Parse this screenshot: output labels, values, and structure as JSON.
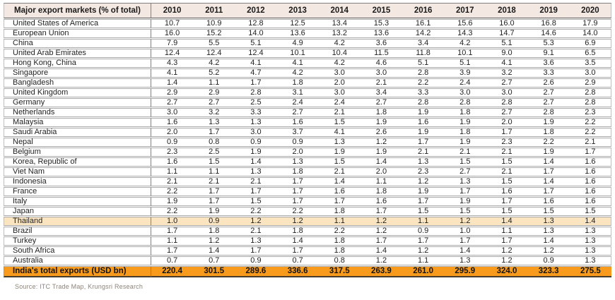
{
  "colors": {
    "header_bg": "#F4E8E3",
    "highlight_bg": "#FBE5C0",
    "total_bg": "#F89B1C",
    "row_border": "#ABABAB",
    "divider": "#808080",
    "header_border_top": "#808080",
    "header_border_bottom": "#595959",
    "table_bottom_border": "#4A3C2B",
    "source_color": "#8C8477"
  },
  "chart_data": {
    "type": "table",
    "title": "Major export markets (% of total)",
    "columns": [
      "2010",
      "2011",
      "2012",
      "2013",
      "2014",
      "2015",
      "2016",
      "2017",
      "2018",
      "2019",
      "2020"
    ],
    "rows": [
      {
        "label": "United States of America",
        "values": [
          10.7,
          10.9,
          12.8,
          12.5,
          13.4,
          15.3,
          16.1,
          15.6,
          16.0,
          16.8,
          17.9
        ],
        "highlight": false
      },
      {
        "label": "European Union",
        "values": [
          16.0,
          15.2,
          14.0,
          13.6,
          13.2,
          13.6,
          14.2,
          14.3,
          14.7,
          14.6,
          14.0
        ],
        "highlight": false
      },
      {
        "label": "China",
        "values": [
          7.9,
          5.5,
          5.1,
          4.9,
          4.2,
          3.6,
          3.4,
          4.2,
          5.1,
          5.3,
          6.9
        ],
        "highlight": false
      },
      {
        "label": "United Arab Emirates",
        "values": [
          12.4,
          12.4,
          12.4,
          10.1,
          10.4,
          11.5,
          11.8,
          10.1,
          9.0,
          9.1,
          6.5
        ],
        "highlight": false
      },
      {
        "label": "Hong Kong, China",
        "values": [
          4.3,
          4.2,
          4.1,
          4.1,
          4.2,
          4.6,
          5.1,
          5.1,
          4.1,
          3.6,
          3.5
        ],
        "highlight": false
      },
      {
        "label": "Singapore",
        "values": [
          4.1,
          5.2,
          4.7,
          4.2,
          3.0,
          3.0,
          2.8,
          3.9,
          3.2,
          3.3,
          3.0
        ],
        "highlight": false
      },
      {
        "label": "Bangladesh",
        "values": [
          1.4,
          1.1,
          1.7,
          1.8,
          2.0,
          2.1,
          2.2,
          2.4,
          2.7,
          2.6,
          2.9
        ],
        "highlight": false
      },
      {
        "label": "United Kingdom",
        "values": [
          2.9,
          2.9,
          2.8,
          3.1,
          3.0,
          3.4,
          3.3,
          3.0,
          3.0,
          2.7,
          2.8
        ],
        "highlight": false
      },
      {
        "label": "Germany",
        "values": [
          2.7,
          2.7,
          2.5,
          2.4,
          2.4,
          2.7,
          2.8,
          2.8,
          2.8,
          2.7,
          2.8
        ],
        "highlight": false
      },
      {
        "label": "Netherlands",
        "values": [
          3.0,
          3.2,
          3.3,
          2.7,
          2.1,
          1.8,
          1.9,
          1.8,
          2.7,
          2.8,
          2.3
        ],
        "highlight": false
      },
      {
        "label": "Malaysia",
        "values": [
          1.6,
          1.3,
          1.3,
          1.6,
          1.5,
          1.9,
          1.6,
          1.9,
          2.0,
          1.9,
          2.2
        ],
        "highlight": false
      },
      {
        "label": "Saudi Arabia",
        "values": [
          2.0,
          1.7,
          3.0,
          3.7,
          4.1,
          2.6,
          1.9,
          1.8,
          1.7,
          1.8,
          2.2
        ],
        "highlight": false
      },
      {
        "label": "Nepal",
        "values": [
          0.9,
          0.8,
          0.9,
          0.9,
          1.3,
          1.2,
          1.7,
          1.9,
          2.3,
          2.2,
          2.1
        ],
        "highlight": false
      },
      {
        "label": "Belgium",
        "values": [
          2.3,
          2.5,
          1.9,
          2.0,
          1.9,
          1.9,
          2.1,
          2.1,
          2.1,
          1.9,
          1.7
        ],
        "highlight": false
      },
      {
        "label": "Korea, Republic of",
        "values": [
          1.6,
          1.5,
          1.4,
          1.3,
          1.5,
          1.4,
          1.3,
          1.5,
          1.5,
          1.4,
          1.6
        ],
        "highlight": false
      },
      {
        "label": "Viet Nam",
        "values": [
          1.1,
          1.1,
          1.3,
          1.8,
          2.1,
          2.0,
          2.3,
          2.7,
          2.1,
          1.7,
          1.6
        ],
        "highlight": false
      },
      {
        "label": "Indonesia",
        "values": [
          2.1,
          2.1,
          2.1,
          1.7,
          1.4,
          1.1,
          1.2,
          1.3,
          1.5,
          1.4,
          1.6
        ],
        "highlight": false
      },
      {
        "label": "France",
        "values": [
          2.2,
          1.7,
          1.7,
          1.7,
          1.6,
          1.8,
          1.9,
          1.7,
          1.6,
          1.7,
          1.6
        ],
        "highlight": false
      },
      {
        "label": "Italy",
        "values": [
          1.9,
          1.7,
          1.5,
          1.7,
          1.7,
          1.6,
          1.7,
          1.9,
          1.7,
          1.6,
          1.6
        ],
        "highlight": false
      },
      {
        "label": "Japan",
        "values": [
          2.2,
          1.9,
          2.2,
          2.2,
          1.8,
          1.7,
          1.5,
          1.5,
          1.5,
          1.5,
          1.5
        ],
        "highlight": false
      },
      {
        "label": "Thailand",
        "values": [
          1.0,
          0.9,
          1.2,
          1.2,
          1.1,
          1.2,
          1.1,
          1.2,
          1.4,
          1.3,
          1.4
        ],
        "highlight": true
      },
      {
        "label": "Brazil",
        "values": [
          1.7,
          1.8,
          2.1,
          1.8,
          2.2,
          1.2,
          0.9,
          1.0,
          1.1,
          1.3,
          1.3
        ],
        "highlight": false
      },
      {
        "label": "Turkey",
        "values": [
          1.1,
          1.2,
          1.3,
          1.4,
          1.8,
          1.7,
          1.7,
          1.7,
          1.7,
          1.4,
          1.3
        ],
        "highlight": false
      },
      {
        "label": "South Africa",
        "values": [
          1.7,
          1.4,
          1.7,
          1.7,
          1.8,
          1.4,
          1.2,
          1.4,
          1.2,
          1.2,
          1.3
        ],
        "highlight": false
      },
      {
        "label": "Australia",
        "values": [
          0.7,
          0.7,
          0.9,
          0.7,
          0.8,
          1.2,
          1.1,
          1.3,
          1.2,
          0.9,
          1.3
        ],
        "highlight": false
      }
    ],
    "footer_row": {
      "label": "India's total exports (USD bn)",
      "values": [
        220.4,
        301.5,
        289.6,
        336.6,
        317.5,
        263.9,
        261.0,
        295.9,
        324.0,
        323.3,
        275.5
      ]
    },
    "source": "Source: ITC Trade Map, Krungsri Research",
    "layout": {
      "highlighted_row": "Thailand",
      "value_format": "1-decimal",
      "grid": true,
      "legend": "none"
    }
  }
}
